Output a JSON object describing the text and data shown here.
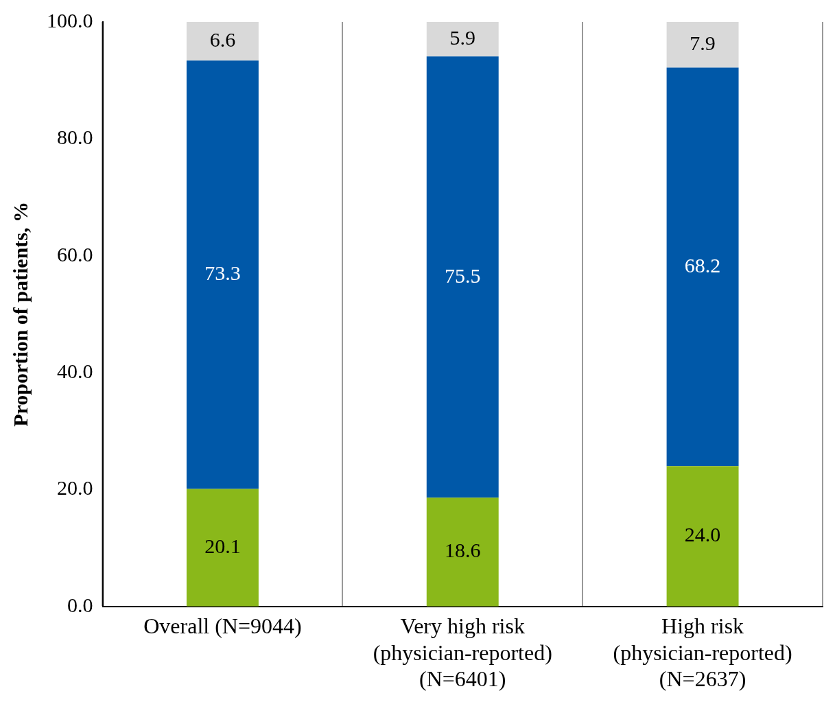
{
  "chart_data": {
    "type": "bar",
    "stacked": true,
    "ylabel": "Proportion of patients, %",
    "categories": [
      "Overall (N=9044)",
      "Very high risk\n(physician-reported)\n(N=6401)",
      "High risk\n(physician-reported)\n(N=2637)"
    ],
    "series": [
      {
        "color": "#8ab81a",
        "values": [
          20.1,
          18.6,
          24.0
        ],
        "value_labels": [
          "20.1",
          "18.6",
          "24.0"
        ]
      },
      {
        "color": "#0058a8",
        "values": [
          73.3,
          75.5,
          68.2
        ],
        "value_labels": [
          "73.3",
          "75.5",
          "68.2"
        ]
      },
      {
        "color": "#d9d9d9",
        "values": [
          6.6,
          5.9,
          7.9
        ],
        "value_labels": [
          "6.6",
          "5.9",
          "7.9"
        ]
      }
    ],
    "ylim": [
      0,
      100
    ],
    "yticks": [
      {
        "value": 0,
        "label": "0.0"
      },
      {
        "value": 20,
        "label": "20.0"
      },
      {
        "value": 40,
        "label": "40.0"
      },
      {
        "value": 60,
        "label": "60.0"
      },
      {
        "value": 80,
        "label": "80.0"
      },
      {
        "value": 100,
        "label": "100.0"
      }
    ],
    "grid": "x",
    "legend": false
  }
}
